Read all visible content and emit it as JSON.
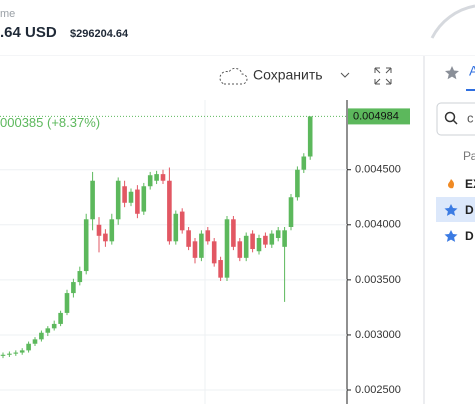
{
  "header": {
    "label": "me",
    "price": ".64 USD",
    "volume": "$296204.64"
  },
  "toolbar": {
    "save": "Сохранить"
  },
  "sidebar": {
    "tab": "A",
    "search": "c",
    "section": "Ра",
    "rows": [
      "EX",
      "D",
      "D"
    ]
  },
  "chart_data": {
    "type": "candlestick",
    "change_label": "000385 (+8.37%)",
    "open": [
      0.00281,
      0.00282,
      0.00283,
      0.00284,
      0.00286,
      0.00292,
      0.00296,
      0.00302,
      0.00306,
      0.0031,
      0.0032,
      0.00338,
      0.00348,
      0.00358,
      0.00405,
      0.004,
      0.00392,
      0.00385,
      0.00405,
      0.00435,
      0.0042,
      0.00432,
      0.00412,
      0.00435,
      0.0044,
      0.00446,
      0.0044,
      0.00385,
      0.00412,
      0.00395,
      0.00385,
      0.0037,
      0.00395,
      0.00385,
      0.00368,
      0.00352,
      0.00405,
      0.00385,
      0.0037,
      0.00392,
      0.00376,
      0.0039,
      0.00382,
      0.00388,
      0.0038,
      0.00398,
      0.00425,
      0.0045,
      0.00462
    ],
    "high": [
      0.00284,
      0.00285,
      0.00286,
      0.00288,
      0.00294,
      0.00298,
      0.00304,
      0.00308,
      0.00313,
      0.00322,
      0.00341,
      0.00351,
      0.00362,
      0.0041,
      0.00448,
      0.00407,
      0.00396,
      0.0041,
      0.00443,
      0.0044,
      0.00433,
      0.00436,
      0.00438,
      0.00448,
      0.00449,
      0.0045,
      0.00452,
      0.00413,
      0.00415,
      0.00398,
      0.00388,
      0.00395,
      0.00398,
      0.00388,
      0.00371,
      0.00408,
      0.00408,
      0.00388,
      0.00393,
      0.00395,
      0.00391,
      0.00393,
      0.00395,
      0.00398,
      0.00398,
      0.00428,
      0.00453,
      0.00465,
      0.004984
    ],
    "low": [
      0.00279,
      0.0028,
      0.00281,
      0.00282,
      0.00284,
      0.0029,
      0.00294,
      0.00299,
      0.00304,
      0.00308,
      0.00318,
      0.00334,
      0.00345,
      0.00355,
      0.00395,
      0.00375,
      0.0038,
      0.00382,
      0.004,
      0.00416,
      0.00417,
      0.00406,
      0.00409,
      0.00432,
      0.00437,
      0.00437,
      0.00382,
      0.00382,
      0.00392,
      0.00377,
      0.00365,
      0.00367,
      0.00382,
      0.00362,
      0.00349,
      0.00349,
      0.00377,
      0.00367,
      0.00367,
      0.00375,
      0.00373,
      0.00379,
      0.00379,
      0.00385,
      0.0033,
      0.00395,
      0.00422,
      0.00447,
      0.00459
    ],
    "close": [
      0.00282,
      0.00283,
      0.00284,
      0.00286,
      0.00292,
      0.00296,
      0.00302,
      0.00306,
      0.0031,
      0.0032,
      0.00338,
      0.00348,
      0.00358,
      0.00405,
      0.0044,
      0.0039,
      0.00385,
      0.00405,
      0.0044,
      0.0042,
      0.0043,
      0.0041,
      0.00435,
      0.00445,
      0.00446,
      0.0044,
      0.00385,
      0.0041,
      0.00395,
      0.0038,
      0.0037,
      0.00392,
      0.00385,
      0.00365,
      0.00352,
      0.00405,
      0.0038,
      0.0037,
      0.0039,
      0.00378,
      0.00388,
      0.00382,
      0.00392,
      0.00395,
      0.00395,
      0.00425,
      0.0045,
      0.00462,
      0.004984
    ],
    "up_color": "#5cb85c",
    "down_color": "#e25763",
    "ylim": [
      0.002373,
      0.005133
    ],
    "yticks": [
      {
        "value": 0.0045,
        "label": "0.004500"
      },
      {
        "value": 0.004,
        "label": "0.004000"
      },
      {
        "value": 0.0035,
        "label": "0.003500"
      },
      {
        "value": 0.003,
        "label": "0.003000"
      },
      {
        "value": 0.0025,
        "label": "0.002500"
      }
    ],
    "grid": true
  }
}
